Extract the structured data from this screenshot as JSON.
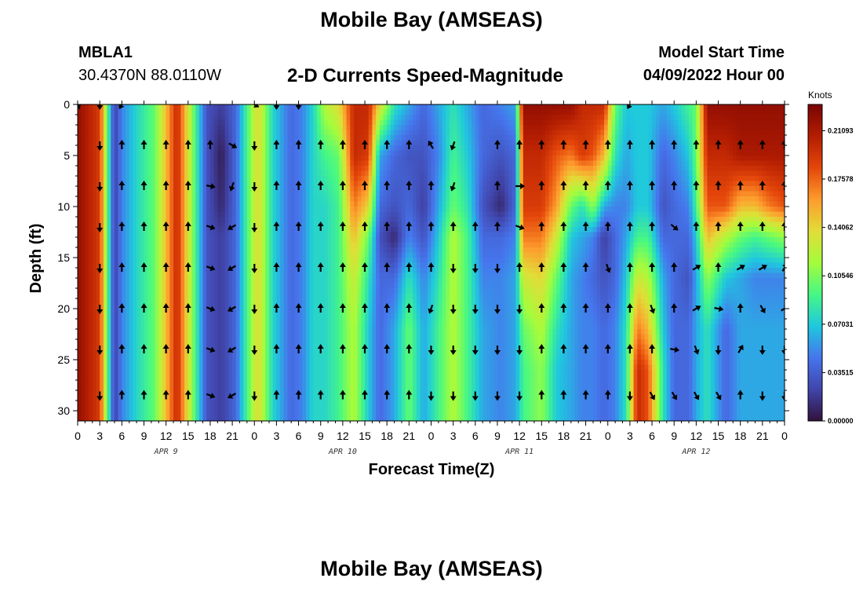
{
  "page": {
    "title_top": "Mobile Bay (AMSEAS)",
    "title_bottom": "Mobile Bay (AMSEAS)",
    "station_id": "MBLA1",
    "station_coords": "30.4370N  88.0110W",
    "chart_title": "2-D Currents Speed-Magnitude",
    "start_label": "Model Start Time",
    "start_value": "04/09/2022 Hour 00"
  },
  "chart_data": {
    "type": "heatmap",
    "title": "2-D Currents Speed-Magnitude",
    "xlabel": "Forecast Time(Z)",
    "ylabel": "Depth (ft)",
    "x_unit": "hours since model start",
    "xlim": [
      0,
      96
    ],
    "ylim": [
      0,
      31
    ],
    "y_inverted": true,
    "x_ticks": [
      0,
      3,
      6,
      9,
      12,
      15,
      18,
      21,
      24,
      27,
      30,
      33,
      36,
      39,
      42,
      45,
      48,
      51,
      54,
      57,
      60,
      63,
      66,
      69,
      72,
      75,
      78,
      81,
      84,
      87,
      90,
      93,
      96
    ],
    "x_tick_labels": [
      "0",
      "3",
      "6",
      "9",
      "12",
      "15",
      "18",
      "21",
      "0",
      "3",
      "6",
      "9",
      "12",
      "15",
      "18",
      "21",
      "0",
      "3",
      "6",
      "9",
      "12",
      "15",
      "18",
      "21",
      "0",
      "3",
      "6",
      "9",
      "12",
      "15",
      "18",
      "21",
      "0"
    ],
    "day_labels": [
      {
        "x": 12,
        "text": "APR 9"
      },
      {
        "x": 36,
        "text": "APR 10"
      },
      {
        "x": 60,
        "text": "APR 11"
      },
      {
        "x": 84,
        "text": "APR 12"
      }
    ],
    "y_ticks": [
      0,
      5,
      10,
      15,
      20,
      25,
      30
    ],
    "y_tick_labels": [
      "0",
      "5",
      "10",
      "15",
      "20",
      "25",
      "30"
    ],
    "colorbar": {
      "label": "Knots",
      "min": 0.0,
      "max": 0.23,
      "ticks": [
        0.21093,
        0.17578,
        0.14062,
        0.10546,
        0.07031,
        0.03515,
        0.0
      ],
      "tick_labels": [
        "0.21093",
        "0.17578",
        "0.14062",
        "0.10546",
        "0.07031",
        "0.03515",
        "0.00000"
      ]
    },
    "depth_profile_y": [
      0,
      5,
      10,
      13,
      17,
      22,
      26,
      31
    ],
    "columns": [
      {
        "x": 0,
        "s": [
          0.22,
          0.22,
          0.22,
          0.22,
          0.22,
          0.22,
          0.22,
          0.22
        ]
      },
      {
        "x": 3,
        "s": [
          0.19,
          0.19,
          0.19,
          0.19,
          0.19,
          0.19,
          0.19,
          0.19
        ]
      },
      {
        "x": 4.3,
        "s": [
          0.075,
          0.075,
          0.075,
          0.075,
          0.075,
          0.075,
          0.075,
          0.075
        ]
      },
      {
        "x": 5,
        "s": [
          0.02,
          0.02,
          0.02,
          0.02,
          0.02,
          0.02,
          0.02,
          0.02
        ]
      },
      {
        "x": 6,
        "s": [
          0.05,
          0.05,
          0.05,
          0.05,
          0.05,
          0.05,
          0.05,
          0.05
        ]
      },
      {
        "x": 8,
        "s": [
          0.075,
          0.075,
          0.075,
          0.075,
          0.075,
          0.075,
          0.075,
          0.075
        ]
      },
      {
        "x": 10.5,
        "s": [
          0.1,
          0.1,
          0.1,
          0.1,
          0.1,
          0.1,
          0.1,
          0.1
        ]
      },
      {
        "x": 13.5,
        "s": [
          0.2,
          0.2,
          0.2,
          0.2,
          0.2,
          0.2,
          0.2,
          0.2
        ]
      },
      {
        "x": 16,
        "s": [
          0.09,
          0.09,
          0.09,
          0.09,
          0.09,
          0.09,
          0.09,
          0.09
        ]
      },
      {
        "x": 17.5,
        "s": [
          0.03,
          0.03,
          0.03,
          0.03,
          0.03,
          0.03,
          0.03,
          0.03
        ]
      },
      {
        "x": 19.5,
        "s": [
          0.02,
          0.005,
          0.01,
          0.02,
          0.02,
          0.02,
          0.02,
          0.02
        ]
      },
      {
        "x": 21.5,
        "s": [
          0.04,
          0.04,
          0.04,
          0.04,
          0.04,
          0.04,
          0.04,
          0.04
        ]
      },
      {
        "x": 22.5,
        "s": [
          0.075,
          0.075,
          0.075,
          0.075,
          0.075,
          0.075,
          0.075,
          0.075
        ]
      },
      {
        "x": 24.5,
        "s": [
          0.14,
          0.14,
          0.14,
          0.14,
          0.14,
          0.14,
          0.14,
          0.14
        ]
      },
      {
        "x": 26.5,
        "s": [
          0.075,
          0.075,
          0.075,
          0.075,
          0.075,
          0.075,
          0.075,
          0.075
        ]
      },
      {
        "x": 29,
        "s": [
          0.04,
          0.04,
          0.04,
          0.04,
          0.04,
          0.04,
          0.04,
          0.04
        ]
      },
      {
        "x": 30.5,
        "s": [
          0.05,
          0.05,
          0.05,
          0.05,
          0.05,
          0.05,
          0.05,
          0.05
        ]
      },
      {
        "x": 32,
        "s": [
          0.075,
          0.075,
          0.075,
          0.075,
          0.075,
          0.075,
          0.075,
          0.075
        ]
      },
      {
        "x": 33.5,
        "s": [
          0.12,
          0.09,
          0.075,
          0.075,
          0.075,
          0.075,
          0.075,
          0.075
        ]
      },
      {
        "x": 35.5,
        "s": [
          0.14,
          0.1,
          0.09,
          0.09,
          0.09,
          0.09,
          0.09,
          0.09
        ]
      },
      {
        "x": 37.5,
        "s": [
          0.2,
          0.2,
          0.17,
          0.15,
          0.13,
          0.12,
          0.12,
          0.12
        ]
      },
      {
        "x": 39.5,
        "s": [
          0.2,
          0.19,
          0.14,
          0.1,
          0.08,
          0.07,
          0.07,
          0.07
        ]
      },
      {
        "x": 41,
        "s": [
          0.14,
          0.06,
          0.04,
          0.03,
          0.04,
          0.04,
          0.04,
          0.04
        ]
      },
      {
        "x": 43,
        "s": [
          0.08,
          0.04,
          0.03,
          0.01,
          0.04,
          0.06,
          0.06,
          0.06
        ]
      },
      {
        "x": 45,
        "s": [
          0.06,
          0.03,
          0.04,
          0.05,
          0.08,
          0.1,
          0.1,
          0.1
        ]
      },
      {
        "x": 47,
        "s": [
          0.04,
          0.03,
          0.02,
          0.03,
          0.05,
          0.06,
          0.06,
          0.06
        ]
      },
      {
        "x": 49,
        "s": [
          0.06,
          0.05,
          0.06,
          0.07,
          0.08,
          0.09,
          0.09,
          0.09
        ]
      },
      {
        "x": 51,
        "s": [
          0.08,
          0.09,
          0.1,
          0.12,
          0.12,
          0.12,
          0.12,
          0.12
        ]
      },
      {
        "x": 53,
        "s": [
          0.06,
          0.07,
          0.08,
          0.09,
          0.09,
          0.09,
          0.09,
          0.09
        ]
      },
      {
        "x": 55,
        "s": [
          0.04,
          0.04,
          0.03,
          0.04,
          0.05,
          0.06,
          0.06,
          0.06
        ]
      },
      {
        "x": 57.5,
        "s": [
          0.05,
          0.03,
          0.01,
          0.04,
          0.05,
          0.05,
          0.05,
          0.05
        ]
      },
      {
        "x": 59.5,
        "s": [
          0.06,
          0.04,
          0.04,
          0.05,
          0.06,
          0.06,
          0.06,
          0.06
        ]
      },
      {
        "x": 60.5,
        "s": [
          0.22,
          0.2,
          0.19,
          0.17,
          0.13,
          0.1,
          0.09,
          0.09
        ]
      },
      {
        "x": 63,
        "s": [
          0.22,
          0.2,
          0.19,
          0.17,
          0.14,
          0.12,
          0.11,
          0.11
        ]
      },
      {
        "x": 65,
        "s": [
          0.22,
          0.18,
          0.16,
          0.13,
          0.1,
          0.08,
          0.07,
          0.07
        ]
      },
      {
        "x": 67,
        "s": [
          0.22,
          0.17,
          0.1,
          0.07,
          0.06,
          0.06,
          0.06,
          0.06
        ]
      },
      {
        "x": 68.5,
        "s": [
          0.2,
          0.19,
          0.08,
          0.06,
          0.05,
          0.05,
          0.05,
          0.05
        ]
      },
      {
        "x": 70,
        "s": [
          0.2,
          0.18,
          0.11,
          0.05,
          0.04,
          0.05,
          0.05,
          0.05
        ]
      },
      {
        "x": 71.5,
        "s": [
          0.2,
          0.15,
          0.06,
          0.02,
          0.03,
          0.04,
          0.04,
          0.04
        ]
      },
      {
        "x": 73,
        "s": [
          0.1,
          0.08,
          0.05,
          0.04,
          0.04,
          0.05,
          0.05,
          0.05
        ]
      },
      {
        "x": 74.5,
        "s": [
          0.07,
          0.06,
          0.05,
          0.06,
          0.07,
          0.08,
          0.08,
          0.08
        ]
      },
      {
        "x": 76,
        "s": [
          0.07,
          0.07,
          0.07,
          0.09,
          0.13,
          0.17,
          0.2,
          0.2
        ]
      },
      {
        "x": 77.5,
        "s": [
          0.07,
          0.07,
          0.07,
          0.09,
          0.12,
          0.15,
          0.18,
          0.18
        ]
      },
      {
        "x": 79.5,
        "s": [
          0.06,
          0.04,
          0.03,
          0.04,
          0.06,
          0.07,
          0.08,
          0.08
        ]
      },
      {
        "x": 81,
        "s": [
          0.07,
          0.05,
          0.04,
          0.04,
          0.04,
          0.04,
          0.04,
          0.04
        ]
      },
      {
        "x": 83,
        "s": [
          0.09,
          0.07,
          0.05,
          0.04,
          0.03,
          0.04,
          0.04,
          0.04
        ]
      },
      {
        "x": 84,
        "s": [
          0.1,
          0.1,
          0.09,
          0.07,
          0.06,
          0.06,
          0.06,
          0.06
        ]
      },
      {
        "x": 85.5,
        "s": [
          0.22,
          0.2,
          0.18,
          0.15,
          0.11,
          0.08,
          0.08,
          0.08
        ]
      },
      {
        "x": 88,
        "s": [
          0.22,
          0.2,
          0.18,
          0.12,
          0.07,
          0.04,
          0.04,
          0.04
        ]
      },
      {
        "x": 90,
        "s": [
          0.22,
          0.21,
          0.15,
          0.1,
          0.06,
          0.06,
          0.06,
          0.06
        ]
      },
      {
        "x": 92,
        "s": [
          0.22,
          0.21,
          0.15,
          0.09,
          0.05,
          0.06,
          0.06,
          0.06
        ]
      },
      {
        "x": 94,
        "s": [
          0.22,
          0.21,
          0.17,
          0.1,
          0.05,
          0.06,
          0.06,
          0.06
        ]
      },
      {
        "x": 96,
        "s": [
          0.22,
          0.21,
          0.18,
          0.11,
          0.05,
          0.06,
          0.06,
          0.06
        ]
      }
    ],
    "vector_depths": [
      0,
      4,
      8,
      12,
      16,
      20,
      24,
      28.5
    ],
    "vector_times": [
      0,
      3,
      6,
      9,
      12,
      15,
      18,
      21,
      24,
      27,
      30,
      33,
      36,
      39,
      42,
      45,
      48,
      51,
      54,
      57,
      60,
      63,
      66,
      69,
      72,
      75,
      78,
      81,
      84,
      87,
      90,
      93,
      96
    ],
    "vector_direction_rows_deg": [
      [
        160,
        180,
        210,
        null,
        null,
        null,
        null,
        null,
        120,
        180,
        180,
        null,
        null,
        null,
        null,
        null,
        null,
        null,
        null,
        null,
        null,
        null,
        null,
        null,
        null,
        210,
        null,
        null,
        null,
        null,
        null,
        null,
        null
      ],
      [
        null,
        180,
        0,
        0,
        0,
        0,
        0,
        120,
        180,
        0,
        0,
        0,
        0,
        0,
        0,
        0,
        330,
        200,
        null,
        0,
        0,
        0,
        0,
        0,
        0,
        0,
        0,
        0,
        0,
        0,
        0,
        0,
        0
      ],
      [
        null,
        180,
        0,
        0,
        0,
        0,
        100,
        200,
        180,
        0,
        0,
        0,
        0,
        0,
        0,
        0,
        0,
        200,
        null,
        0,
        90,
        0,
        0,
        0,
        0,
        0,
        0,
        0,
        0,
        0,
        0,
        0,
        0
      ],
      [
        null,
        180,
        0,
        0,
        0,
        0,
        110,
        240,
        180,
        0,
        0,
        0,
        0,
        0,
        0,
        0,
        0,
        0,
        0,
        0,
        110,
        0,
        0,
        0,
        0,
        0,
        0,
        130,
        0,
        0,
        0,
        0,
        0
      ],
      [
        null,
        180,
        0,
        0,
        0,
        0,
        110,
        240,
        180,
        0,
        0,
        0,
        0,
        0,
        0,
        0,
        0,
        180,
        180,
        180,
        0,
        0,
        0,
        0,
        160,
        0,
        0,
        0,
        60,
        0,
        60,
        60,
        30
      ],
      [
        null,
        180,
        0,
        0,
        0,
        0,
        110,
        240,
        180,
        0,
        0,
        0,
        0,
        0,
        0,
        0,
        200,
        180,
        180,
        180,
        180,
        0,
        0,
        0,
        0,
        0,
        160,
        0,
        60,
        100,
        0,
        150,
        60
      ],
      [
        null,
        180,
        0,
        0,
        0,
        0,
        110,
        240,
        180,
        0,
        0,
        0,
        0,
        0,
        0,
        0,
        180,
        180,
        180,
        180,
        180,
        0,
        0,
        0,
        0,
        0,
        0,
        100,
        160,
        180,
        30,
        180,
        180
      ],
      [
        null,
        180,
        0,
        0,
        0,
        0,
        110,
        240,
        180,
        0,
        0,
        0,
        0,
        0,
        0,
        0,
        180,
        180,
        180,
        180,
        180,
        0,
        0,
        0,
        0,
        180,
        150,
        150,
        150,
        150,
        0,
        180,
        180
      ]
    ]
  }
}
